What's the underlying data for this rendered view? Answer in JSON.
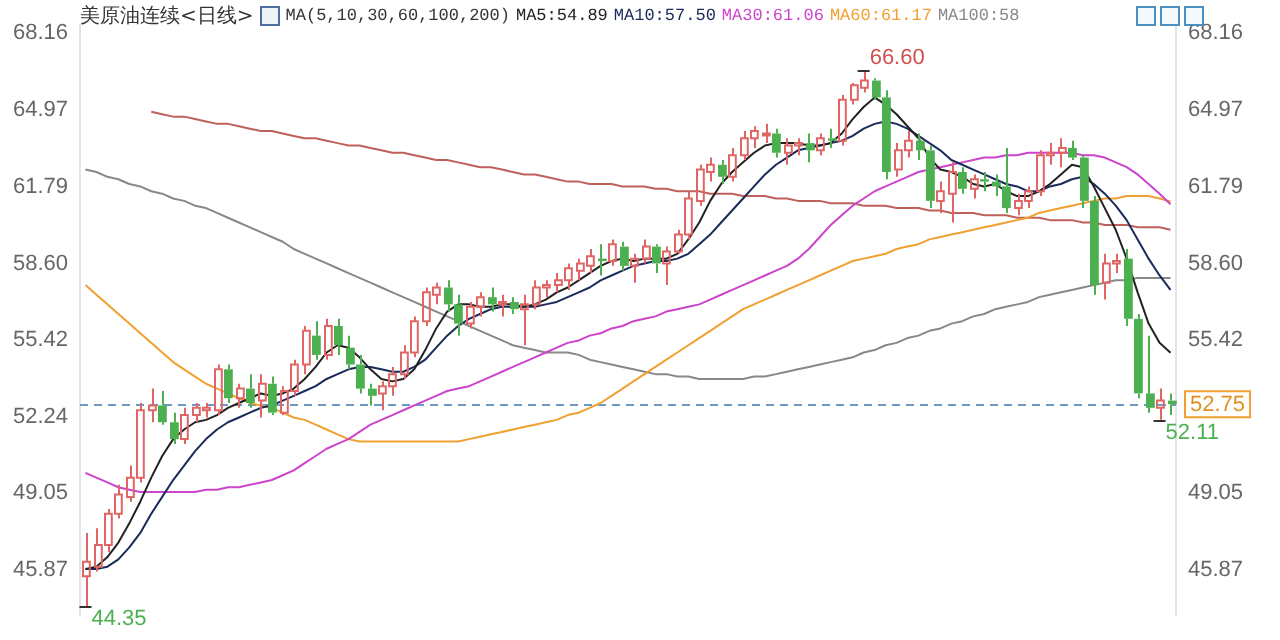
{
  "chart_data": {
    "type": "candlestick",
    "title": "美原油连续<日线>",
    "legend_title": "MA(5,10,30,60,100,200)",
    "legend": "top",
    "marker": "none",
    "tick_labels": "y",
    "categories": [
      null,
      null,
      null,
      null,
      null,
      null,
      null,
      null,
      null,
      null,
      null,
      null,
      null,
      null,
      null,
      null,
      null,
      null,
      null,
      null,
      null,
      null,
      null,
      null,
      null,
      null,
      null,
      null,
      null,
      null,
      null,
      null,
      null,
      null,
      null,
      null,
      null,
      null,
      null,
      null,
      null,
      null,
      null,
      null,
      null,
      null,
      null,
      null,
      null,
      null,
      null,
      null,
      null,
      null,
      null,
      null,
      null,
      null,
      null,
      null,
      null,
      null,
      null,
      null,
      null,
      null,
      null,
      null,
      null,
      null,
      null,
      null,
      null,
      null,
      null,
      null,
      null,
      null,
      null,
      null,
      null,
      null,
      null,
      null,
      null,
      null,
      null,
      null,
      null,
      null,
      null,
      null,
      null,
      null,
      null,
      null,
      null,
      null,
      null,
      null
    ],
    "ylim": [
      44.0,
      68.5
    ],
    "yticks": [
      45.87,
      49.05,
      52.24,
      55.42,
      {
        "value": 58.6,
        "label": "58.60"
      },
      61.79,
      64.97,
      68.16
    ],
    "y2lim": [
      44.0,
      68.5
    ],
    "y2ticks": [
      45.87,
      49.05,
      55.42,
      {
        "value": 58.6,
        "label": "58.60"
      },
      61.79,
      64.97,
      68.16
    ],
    "ohlc": [
      [
        45.6,
        47.4,
        44.35,
        46.2
      ],
      [
        46.0,
        47.6,
        45.8,
        46.9
      ],
      [
        46.9,
        48.4,
        46.6,
        48.2
      ],
      [
        48.2,
        49.4,
        48.0,
        49.0
      ],
      [
        48.9,
        50.2,
        48.7,
        49.7
      ],
      [
        49.7,
        52.8,
        49.5,
        52.5
      ],
      [
        52.5,
        53.4,
        52.0,
        52.7
      ],
      [
        52.7,
        53.3,
        51.9,
        52.0
      ],
      [
        52.0,
        52.4,
        51.1,
        51.3
      ],
      [
        51.3,
        52.6,
        51.1,
        52.3
      ],
      [
        52.3,
        52.8,
        52.0,
        52.6
      ],
      [
        52.5,
        52.8,
        52.2,
        52.6
      ],
      [
        52.5,
        54.4,
        52.3,
        54.2
      ],
      [
        54.2,
        54.4,
        52.8,
        53.0
      ],
      [
        53.0,
        53.6,
        52.6,
        53.4
      ],
      [
        53.4,
        54.0,
        52.6,
        52.8
      ],
      [
        52.9,
        54.0,
        52.2,
        53.6
      ],
      [
        53.6,
        53.9,
        52.3,
        52.4
      ],
      [
        52.4,
        53.5,
        52.3,
        53.3
      ],
      [
        53.3,
        54.6,
        53.1,
        54.4
      ],
      [
        54.4,
        56.0,
        54.0,
        55.8
      ],
      [
        55.6,
        56.2,
        54.6,
        54.8
      ],
      [
        54.8,
        56.3,
        54.6,
        56.0
      ],
      [
        56.0,
        56.3,
        54.8,
        55.2
      ],
      [
        55.1,
        55.6,
        54.2,
        54.4
      ],
      [
        54.4,
        54.8,
        53.2,
        53.4
      ],
      [
        53.4,
        53.6,
        52.7,
        53.1
      ],
      [
        53.2,
        53.7,
        52.5,
        53.5
      ],
      [
        53.5,
        54.3,
        53.1,
        54.0
      ],
      [
        54.0,
        55.2,
        53.8,
        54.9
      ],
      [
        54.9,
        56.4,
        54.7,
        56.2
      ],
      [
        56.2,
        57.6,
        56.0,
        57.4
      ],
      [
        57.3,
        57.8,
        56.9,
        57.6
      ],
      [
        57.6,
        57.9,
        56.6,
        56.9
      ],
      [
        56.9,
        57.3,
        55.6,
        56.1
      ],
      [
        56.1,
        57.0,
        55.9,
        56.8
      ],
      [
        56.8,
        57.4,
        56.4,
        57.2
      ],
      [
        57.2,
        57.6,
        56.6,
        56.9
      ],
      [
        56.9,
        57.3,
        56.4,
        57.0
      ],
      [
        57.0,
        57.2,
        56.5,
        56.7
      ],
      [
        56.7,
        57.3,
        55.2,
        56.9
      ],
      [
        56.9,
        57.9,
        56.7,
        57.6
      ],
      [
        57.6,
        57.9,
        57.2,
        57.7
      ],
      [
        57.7,
        58.2,
        57.4,
        57.9
      ],
      [
        57.9,
        58.6,
        57.5,
        58.4
      ],
      [
        58.3,
        58.8,
        57.9,
        58.6
      ],
      [
        58.5,
        59.2,
        58.2,
        58.9
      ],
      [
        58.8,
        59.4,
        58.1,
        58.7
      ],
      [
        58.7,
        59.6,
        58.5,
        59.4
      ],
      [
        59.3,
        59.5,
        58.3,
        58.5
      ],
      [
        58.5,
        59.0,
        57.8,
        58.8
      ],
      [
        58.8,
        59.6,
        58.6,
        59.3
      ],
      [
        59.3,
        59.4,
        58.2,
        58.6
      ],
      [
        58.6,
        59.3,
        57.7,
        59.1
      ],
      [
        59.1,
        60.0,
        59.0,
        59.8
      ],
      [
        59.8,
        61.6,
        59.6,
        61.3
      ],
      [
        61.2,
        62.7,
        61.0,
        62.5
      ],
      [
        62.4,
        63.0,
        62.0,
        62.7
      ],
      [
        62.7,
        62.9,
        61.9,
        62.2
      ],
      [
        62.2,
        63.4,
        62.0,
        63.1
      ],
      [
        63.1,
        64.1,
        62.9,
        63.8
      ],
      [
        63.8,
        64.3,
        63.4,
        64.1
      ],
      [
        64.0,
        64.4,
        63.6,
        64.0
      ],
      [
        64.0,
        64.2,
        63.0,
        63.2
      ],
      [
        63.2,
        63.8,
        62.7,
        63.5
      ],
      [
        63.5,
        63.8,
        63.1,
        63.6
      ],
      [
        63.6,
        64.0,
        62.8,
        63.3
      ],
      [
        63.3,
        64.0,
        63.1,
        63.8
      ],
      [
        63.8,
        64.2,
        63.4,
        63.7
      ],
      [
        63.7,
        65.6,
        63.5,
        65.4
      ],
      [
        65.4,
        66.1,
        65.2,
        66.0
      ],
      [
        65.9,
        66.6,
        65.7,
        66.2
      ],
      [
        66.2,
        66.3,
        65.4,
        65.5
      ],
      [
        65.5,
        65.8,
        62.1,
        62.4
      ],
      [
        62.5,
        63.6,
        62.2,
        63.3
      ],
      [
        63.3,
        64.1,
        63.0,
        63.7
      ],
      [
        63.7,
        64.0,
        62.9,
        63.3
      ],
      [
        63.3,
        63.5,
        60.9,
        61.2
      ],
      [
        61.2,
        62.0,
        60.7,
        61.6
      ],
      [
        61.5,
        62.8,
        60.3,
        62.4
      ],
      [
        62.4,
        62.6,
        61.5,
        61.7
      ],
      [
        61.7,
        62.3,
        61.3,
        62.1
      ],
      [
        62.1,
        62.4,
        61.6,
        62.0
      ],
      [
        62.0,
        62.3,
        61.4,
        61.8
      ],
      [
        61.8,
        63.4,
        60.7,
        60.9
      ],
      [
        60.9,
        61.5,
        60.6,
        61.2
      ],
      [
        61.2,
        61.8,
        60.9,
        61.6
      ],
      [
        61.6,
        63.3,
        61.4,
        63.1
      ],
      [
        63.1,
        63.6,
        62.7,
        63.2
      ],
      [
        63.2,
        63.8,
        62.6,
        63.4
      ],
      [
        63.4,
        63.7,
        62.9,
        63.0
      ],
      [
        63.0,
        63.1,
        60.9,
        61.2
      ],
      [
        61.2,
        61.4,
        57.3,
        57.7
      ],
      [
        57.8,
        59.0,
        57.1,
        58.6
      ],
      [
        58.6,
        59.0,
        58.2,
        58.7
      ],
      [
        58.8,
        59.2,
        56.0,
        56.3
      ],
      [
        56.3,
        56.5,
        53.0,
        53.2
      ],
      [
        53.2,
        55.6,
        52.4,
        52.6
      ],
      [
        52.6,
        53.4,
        52.11,
        52.9
      ],
      [
        52.9,
        53.2,
        52.3,
        52.75
      ]
    ],
    "colors": [
      "#e06666",
      "#e06666",
      "#e06666",
      "#e06666",
      "#e06666",
      "#e06666",
      "#e06666",
      "#4caf50",
      "#4caf50",
      "#e06666",
      "#e06666",
      "#e06666",
      "#e06666",
      "#4caf50",
      "#e06666",
      "#4caf50",
      "#e06666",
      "#4caf50",
      "#e06666",
      "#e06666",
      "#e06666",
      "#4caf50",
      "#e06666",
      "#4caf50",
      "#4caf50",
      "#4caf50",
      "#4caf50",
      "#e06666",
      "#e06666",
      "#e06666",
      "#e06666",
      "#e06666",
      "#e06666",
      "#4caf50",
      "#4caf50",
      "#e06666",
      "#e06666",
      "#4caf50",
      "#e06666",
      "#4caf50",
      "#e06666",
      "#e06666",
      "#e06666",
      "#e06666",
      "#e06666",
      "#e06666",
      "#e06666",
      "#4caf50",
      "#e06666",
      "#4caf50",
      "#e06666",
      "#e06666",
      "#4caf50",
      "#e06666",
      "#e06666",
      "#e06666",
      "#e06666",
      "#e06666",
      "#4caf50",
      "#e06666",
      "#e06666",
      "#e06666",
      "#e06666",
      "#4caf50",
      "#e06666",
      "#e06666",
      "#4caf50",
      "#e06666",
      "#4caf50",
      "#e06666",
      "#e06666",
      "#e06666",
      "#4caf50",
      "#4caf50",
      "#e06666",
      "#e06666",
      "#4caf50",
      "#4caf50",
      "#e06666",
      "#e06666",
      "#4caf50",
      "#e06666",
      "#4caf50",
      "#4caf50",
      "#4caf50",
      "#e06666",
      "#e06666",
      "#e06666",
      "#e06666",
      "#e06666",
      "#4caf50",
      "#4caf50",
      "#4caf50",
      "#e06666",
      "#e06666",
      "#4caf50",
      "#4caf50",
      "#4caf50",
      "#e06666",
      "#4caf50"
    ],
    "series": [
      {
        "type": "line",
        "name": "MA5:54.89",
        "color": "#222222",
        "values": [
          45.9,
          46.0,
          46.4,
          47.0,
          47.8,
          48.7,
          49.7,
          50.6,
          51.3,
          51.7,
          52.0,
          52.1,
          52.3,
          52.6,
          52.8,
          53.0,
          53.2,
          53.1,
          53.2,
          53.4,
          53.8,
          54.3,
          54.9,
          55.2,
          55.1,
          54.7,
          54.2,
          53.8,
          53.7,
          53.8,
          54.2,
          55.0,
          55.9,
          56.6,
          56.9,
          56.9,
          56.8,
          56.8,
          56.9,
          56.9,
          56.8,
          56.9,
          57.1,
          57.4,
          57.6,
          57.9,
          58.2,
          58.5,
          58.7,
          58.8,
          58.7,
          58.8,
          58.8,
          58.8,
          59.0,
          59.6,
          60.3,
          61.2,
          61.9,
          62.4,
          62.8,
          63.2,
          63.5,
          63.6,
          63.6,
          63.6,
          63.5,
          63.5,
          63.6,
          64.0,
          64.6,
          65.1,
          65.5,
          65.2,
          64.8,
          64.3,
          63.8,
          63.0,
          62.5,
          62.4,
          62.2,
          61.9,
          61.8,
          61.9,
          61.6,
          61.4,
          61.4,
          61.6,
          61.9,
          62.3,
          62.7,
          62.6,
          61.8,
          60.9,
          60.0,
          58.8,
          57.4,
          56.1,
          55.3,
          54.89
        ]
      },
      {
        "type": "line",
        "name": "MA10:57.50",
        "color": "#1a2a5a",
        "values": [
          45.9,
          45.9,
          46.0,
          46.3,
          46.8,
          47.4,
          48.2,
          48.9,
          49.6,
          50.2,
          50.8,
          51.3,
          51.7,
          52.0,
          52.2,
          52.4,
          52.6,
          52.7,
          52.9,
          53.1,
          53.3,
          53.5,
          53.8,
          54.0,
          54.2,
          54.3,
          54.3,
          54.2,
          54.1,
          54.1,
          54.3,
          54.6,
          55.1,
          55.6,
          56.0,
          56.3,
          56.5,
          56.7,
          56.8,
          56.8,
          56.8,
          56.8,
          56.9,
          57.0,
          57.2,
          57.4,
          57.6,
          57.9,
          58.1,
          58.3,
          58.5,
          58.6,
          58.7,
          58.7,
          58.8,
          59.0,
          59.4,
          59.8,
          60.3,
          60.8,
          61.3,
          61.8,
          62.3,
          62.7,
          63.0,
          63.3,
          63.4,
          63.5,
          63.6,
          63.7,
          63.9,
          64.2,
          64.4,
          64.5,
          64.4,
          64.2,
          63.9,
          63.6,
          63.3,
          62.9,
          62.7,
          62.5,
          62.3,
          62.1,
          61.9,
          61.8,
          61.6,
          61.6,
          61.8,
          61.9,
          62.1,
          62.2,
          61.9,
          61.5,
          61.0,
          60.4,
          59.6,
          58.8,
          58.1,
          57.5
        ]
      },
      {
        "type": "line",
        "name": "MA30:61.06",
        "color": "#cc44cc",
        "values": [
          49.9,
          49.7,
          49.5,
          49.3,
          49.2,
          49.1,
          49.1,
          49.1,
          49.1,
          49.1,
          49.1,
          49.2,
          49.2,
          49.3,
          49.3,
          49.4,
          49.5,
          49.6,
          49.8,
          50.0,
          50.3,
          50.6,
          50.9,
          51.1,
          51.3,
          51.6,
          51.9,
          52.1,
          52.3,
          52.5,
          52.7,
          52.9,
          53.1,
          53.3,
          53.4,
          53.5,
          53.7,
          53.9,
          54.1,
          54.3,
          54.5,
          54.7,
          54.9,
          55.1,
          55.3,
          55.4,
          55.6,
          55.7,
          55.9,
          56.0,
          56.2,
          56.3,
          56.4,
          56.6,
          56.7,
          56.8,
          56.9,
          57.1,
          57.3,
          57.5,
          57.7,
          57.9,
          58.1,
          58.3,
          58.5,
          58.8,
          59.2,
          59.7,
          60.2,
          60.6,
          61.0,
          61.3,
          61.6,
          61.8,
          62.0,
          62.2,
          62.4,
          62.5,
          62.6,
          62.7,
          62.8,
          62.9,
          63.0,
          63.0,
          63.1,
          63.1,
          63.2,
          63.2,
          63.2,
          63.2,
          63.2,
          63.1,
          63.1,
          63.0,
          62.8,
          62.6,
          62.3,
          61.9,
          61.5,
          61.06
        ]
      },
      {
        "type": "line",
        "name": "MA60:61.17",
        "color": "#f0a030",
        "values": [
          57.7,
          57.3,
          56.9,
          56.5,
          56.1,
          55.7,
          55.3,
          54.9,
          54.5,
          54.2,
          53.9,
          53.6,
          53.4,
          53.2,
          53.0,
          52.8,
          52.7,
          52.6,
          52.4,
          52.2,
          52.1,
          51.9,
          51.7,
          51.5,
          51.3,
          51.2,
          51.2,
          51.2,
          51.2,
          51.2,
          51.2,
          51.2,
          51.2,
          51.2,
          51.2,
          51.3,
          51.4,
          51.5,
          51.6,
          51.7,
          51.8,
          51.9,
          52.0,
          52.1,
          52.3,
          52.4,
          52.6,
          52.8,
          53.1,
          53.4,
          53.7,
          54.0,
          54.3,
          54.6,
          54.9,
          55.2,
          55.5,
          55.8,
          56.1,
          56.4,
          56.7,
          56.9,
          57.1,
          57.3,
          57.5,
          57.7,
          57.9,
          58.1,
          58.3,
          58.5,
          58.7,
          58.8,
          58.9,
          59.0,
          59.2,
          59.3,
          59.4,
          59.6,
          59.7,
          59.8,
          59.9,
          60.0,
          60.1,
          60.2,
          60.3,
          60.4,
          60.5,
          60.7,
          60.8,
          60.9,
          61.0,
          61.1,
          61.2,
          61.3,
          61.3,
          61.4,
          61.4,
          61.4,
          61.3,
          61.17
        ]
      },
      {
        "type": "line",
        "name": "MA100:58",
        "color": "#888888",
        "values": [
          62.5,
          62.4,
          62.2,
          62.1,
          61.9,
          61.8,
          61.6,
          61.5,
          61.3,
          61.2,
          61.0,
          60.9,
          60.7,
          60.5,
          60.3,
          60.1,
          59.9,
          59.7,
          59.5,
          59.2,
          59.0,
          58.8,
          58.6,
          58.4,
          58.2,
          58.0,
          57.8,
          57.6,
          57.4,
          57.2,
          57.0,
          56.8,
          56.6,
          56.4,
          56.2,
          56.0,
          55.8,
          55.6,
          55.4,
          55.2,
          55.1,
          55.0,
          54.9,
          54.9,
          54.9,
          54.8,
          54.6,
          54.5,
          54.4,
          54.3,
          54.2,
          54.1,
          54.0,
          54.0,
          53.9,
          53.9,
          53.8,
          53.8,
          53.8,
          53.8,
          53.8,
          53.9,
          53.9,
          54.0,
          54.1,
          54.2,
          54.3,
          54.4,
          54.5,
          54.6,
          54.7,
          54.9,
          55.0,
          55.2,
          55.3,
          55.5,
          55.6,
          55.8,
          55.9,
          56.1,
          56.2,
          56.4,
          56.5,
          56.7,
          56.8,
          56.9,
          57.0,
          57.2,
          57.3,
          57.4,
          57.5,
          57.6,
          57.7,
          57.8,
          57.9,
          57.9,
          58.0,
          58.0,
          58.0,
          58.0
        ]
      },
      {
        "type": "line",
        "color": "#c0605a",
        "values": [
          null,
          null,
          null,
          null,
          null,
          null,
          64.9,
          64.8,
          64.7,
          64.7,
          64.6,
          64.5,
          64.4,
          64.4,
          64.3,
          64.2,
          64.1,
          64.1,
          64.0,
          63.9,
          63.8,
          63.8,
          63.7,
          63.6,
          63.5,
          63.5,
          63.4,
          63.3,
          63.2,
          63.2,
          63.1,
          63.0,
          62.9,
          62.9,
          62.8,
          62.7,
          62.6,
          62.6,
          62.5,
          62.4,
          62.3,
          62.3,
          62.2,
          62.1,
          62.0,
          62.0,
          61.9,
          61.9,
          61.9,
          61.8,
          61.8,
          61.8,
          61.7,
          61.7,
          61.6,
          61.6,
          61.6,
          61.5,
          61.5,
          61.5,
          61.4,
          61.4,
          61.4,
          61.3,
          61.3,
          61.2,
          61.2,
          61.2,
          61.1,
          61.1,
          61.1,
          61.0,
          61.0,
          61.0,
          60.9,
          60.9,
          60.9,
          60.8,
          60.8,
          60.7,
          60.7,
          60.7,
          60.6,
          60.6,
          60.6,
          60.5,
          60.5,
          60.5,
          60.4,
          60.4,
          60.4,
          60.3,
          60.3,
          60.2,
          60.2,
          60.2,
          60.1,
          60.1,
          60.1,
          60.0
        ]
      }
    ],
    "ref_lines": [
      {
        "axis": "y",
        "value": 52.75,
        "label": "52.75",
        "color": "#6a9ac4",
        "line_style": "dashed"
      }
    ],
    "annotations": [
      "66.60",
      "44.35",
      "52.11"
    ]
  }
}
